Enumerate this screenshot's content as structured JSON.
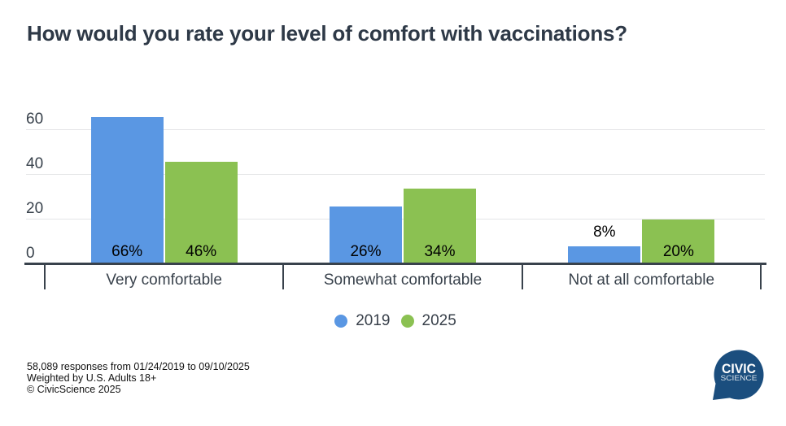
{
  "title": "How would you rate your level of comfort with vaccinations?",
  "chart_data": {
    "type": "bar",
    "title": "How would you rate your level of comfort with vaccinations?",
    "categories": [
      "Very comfortable",
      "Somewhat comfortable",
      "Not at all comfortable"
    ],
    "series": [
      {
        "name": "2019",
        "color": "#5a97e3",
        "values": [
          66,
          26,
          8
        ]
      },
      {
        "name": "2025",
        "color": "#8bc152",
        "values": [
          46,
          34,
          20
        ]
      }
    ],
    "value_label_format": "percent",
    "yticks": [
      0,
      20,
      40,
      60
    ],
    "ylim": [
      0,
      70
    ],
    "grid": true,
    "legend_position": "bottom"
  },
  "legend": {
    "items": [
      {
        "label": "2019",
        "color": "#5a97e3"
      },
      {
        "label": "2025",
        "color": "#8bc152"
      }
    ]
  },
  "footer": {
    "line1": "58,089 responses from 01/24/2019 to 09/10/2025",
    "line2": "Weighted by U.S. Adults 18+",
    "line3": "© CivicScience 2025"
  },
  "logo": {
    "line1": "CIVIC",
    "line2": "SCIENCE"
  },
  "colors": {
    "series_2019": "#5a97e3",
    "series_2025": "#8bc152",
    "title_text": "#2e3947",
    "axis": "#39424c",
    "gridline": "#e4e5e7",
    "logo_blue": "#1b4e7e"
  }
}
